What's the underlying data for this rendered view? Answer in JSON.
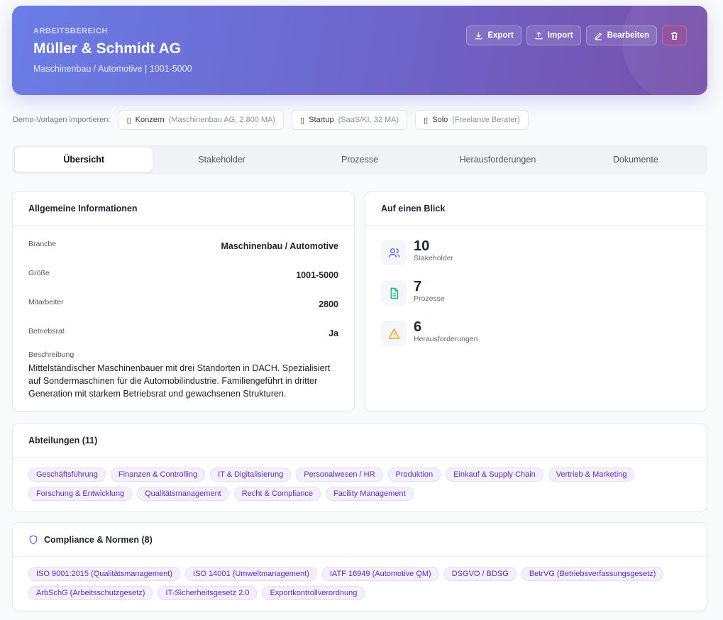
{
  "header": {
    "eyebrow": "ARBEITSBEREICH",
    "title": "Müller & Schmidt AG",
    "subtitle": "Maschinenbau / Automotive | 1001-5000",
    "actions": [
      {
        "label": "Export",
        "icon": "download-icon"
      },
      {
        "label": "Import",
        "icon": "upload-icon"
      },
      {
        "label": "Bearbeiten",
        "icon": "pencil-icon"
      }
    ],
    "delete_icon": "trash-icon"
  },
  "demo": {
    "label": "Demo-Vorlagen importieren:",
    "templates": [
      {
        "name": "Konzern",
        "meta": "(Maschinenbau AG, 2.800 MA)"
      },
      {
        "name": "Startup",
        "meta": "(SaaS/KI, 32 MA)"
      },
      {
        "name": "Solo",
        "meta": "(Freelance Berater)"
      }
    ]
  },
  "tabs": [
    {
      "label": "Übersicht",
      "active": true
    },
    {
      "label": "Stakeholder"
    },
    {
      "label": "Prozesse"
    },
    {
      "label": "Herausforderungen"
    },
    {
      "label": "Dokumente"
    }
  ],
  "info": {
    "title": "Allgemeine Informationen",
    "rows": [
      {
        "k": "Branche",
        "v": "Maschinenbau / Automotive"
      },
      {
        "k": "Größe",
        "v": "1001-5000"
      },
      {
        "k": "Mitarbeiter",
        "v": "2800"
      },
      {
        "k": "Betriebsrat",
        "v": "Ja"
      }
    ],
    "desc_label": "Beschreibung",
    "desc": "Mittelständischer Maschinenbauer mit drei Standorten in DACH. Spezialisiert auf Sondermaschinen für die Automobilindustrie. Familiengeführt in dritter Generation mit starkem Betriebsrat und gewachsenen Strukturen."
  },
  "glance": {
    "title": "Auf einen Blick",
    "stats": [
      {
        "num": "10",
        "label": "Stakeholder",
        "icon": "users-icon",
        "color": "#6366f1"
      },
      {
        "num": "7",
        "label": "Prozesse",
        "icon": "document-icon",
        "color": "#10b981"
      },
      {
        "num": "6",
        "label": "Herausforderungen",
        "icon": "warning-icon",
        "color": "#f59e0b"
      }
    ]
  },
  "departments": {
    "title": "Abteilungen (11)",
    "items": [
      "Geschäftsführung",
      "Finanzen & Controlling",
      "IT & Digitalisierung",
      "Personalwesen / HR",
      "Produktion",
      "Einkauf & Supply Chain",
      "Vertrieb & Marketing",
      "Forschung & Entwicklung",
      "Qualitätsmanagement",
      "Recht & Compliance",
      "Facility Management"
    ]
  },
  "compliance": {
    "title": "Compliance & Normen (8)",
    "icon": "shield-icon",
    "items": [
      "ISO 9001:2015 (Qualitätsmanagement)",
      "ISO 14001 (Umweltmanagement)",
      "IATF 16949 (Automotive QM)",
      "DSGVO / BDSG",
      "BetrVG (Betriebsverfassungsgesetz)",
      "ArbSchG (Arbeitsschutzgesetz)",
      "IT-Sicherheitsgesetz 2.0",
      "Exportkontrollverordnung"
    ]
  }
}
